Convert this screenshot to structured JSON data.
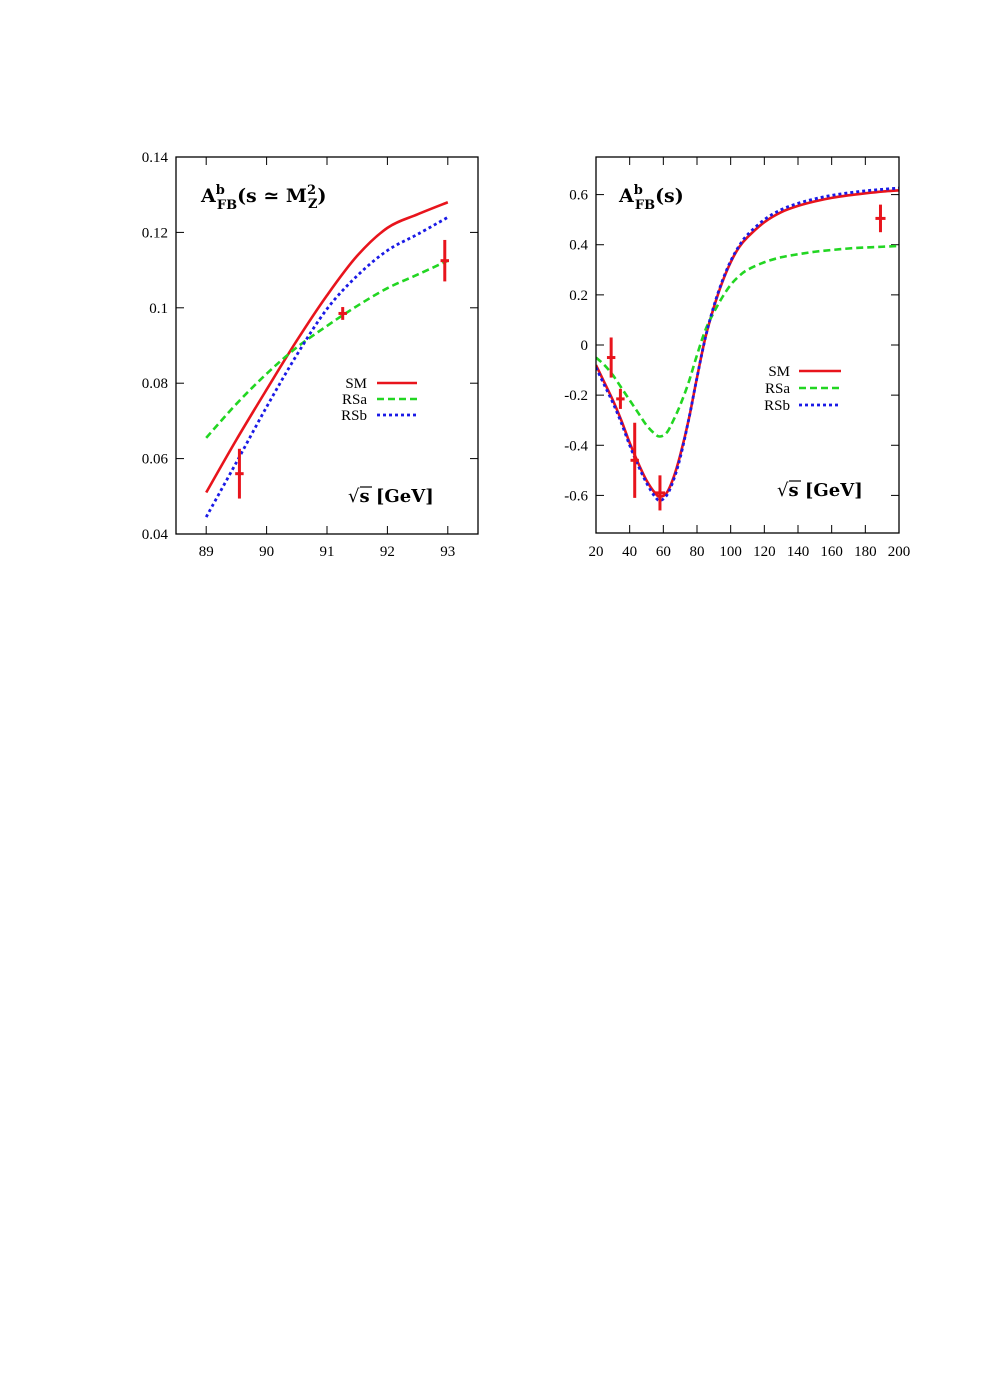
{
  "colors": {
    "SM": "#e8141c",
    "RSa": "#22d622",
    "RSb": "#1a1ae6",
    "data": "#e8141c"
  },
  "chart_data": [
    {
      "type": "line",
      "title": "A_FB^b(s ≃ M_Z^2)",
      "title_parts": {
        "main": "A",
        "sup": "b",
        "sub": "FB",
        "open": "(s ≃ M",
        "zsub": "Z",
        "zsup": "2",
        "close": ")"
      },
      "xlabel": "√s [GeV]",
      "xlabel_parts": {
        "root": "√",
        "text": "s [GeV]"
      },
      "xlim": [
        88.5,
        93.5
      ],
      "ylim": [
        0.04,
        0.14
      ],
      "xticks": [
        89,
        90,
        91,
        92,
        93
      ],
      "yticks": [
        0.04,
        0.06,
        0.08,
        0.1,
        0.12,
        0.14
      ],
      "xtick_labels": [
        "89",
        "90",
        "91",
        "92",
        "93"
      ],
      "ytick_labels": [
        "0.04",
        "0.06",
        "0.08",
        "0.1",
        "0.12",
        "0.14"
      ],
      "legend_position": "center-right",
      "series": [
        {
          "name": "SM",
          "style": "solid",
          "x": [
            89,
            89.5,
            90,
            90.5,
            91,
            91.5,
            92,
            92.5,
            93
          ],
          "y": [
            0.051,
            0.065,
            0.0783,
            0.0913,
            0.1033,
            0.1138,
            0.1212,
            0.1248,
            0.128
          ]
        },
        {
          "name": "RSa",
          "style": "dashed",
          "x": [
            89,
            89.5,
            90,
            90.5,
            91,
            91.5,
            92,
            92.5,
            93
          ],
          "y": [
            0.0655,
            0.0745,
            0.0825,
            0.0895,
            0.0952,
            0.1005,
            0.1052,
            0.1088,
            0.1125
          ]
        },
        {
          "name": "RSb",
          "style": "dotted",
          "x": [
            89,
            89.5,
            90,
            90.5,
            91,
            91.5,
            92,
            92.5,
            93
          ],
          "y": [
            0.0445,
            0.059,
            0.0737,
            0.0875,
            0.0997,
            0.1085,
            0.1152,
            0.1195,
            0.124
          ]
        }
      ],
      "data_points": [
        {
          "x": 89.55,
          "y": 0.056,
          "yerr": 0.0066,
          "xerr": 0.07
        },
        {
          "x": 91.26,
          "y": 0.0985,
          "yerr": 0.0017,
          "xerr": 0.07
        },
        {
          "x": 92.95,
          "y": 0.1125,
          "yerr": 0.0055,
          "xerr": 0.07
        }
      ]
    },
    {
      "type": "line",
      "title": "A_FB^b(s)",
      "title_parts": {
        "main": "A",
        "sup": "b",
        "sub": "FB",
        "open": "(s)"
      },
      "xlabel": "√s [GeV]",
      "xlabel_parts": {
        "root": "√",
        "text": "s [GeV]"
      },
      "xlim": [
        20,
        200
      ],
      "ylim": [
        -0.75,
        0.75
      ],
      "xticks": [
        20,
        40,
        60,
        80,
        100,
        120,
        140,
        160,
        180,
        200
      ],
      "yticks": [
        -0.6,
        -0.4,
        -0.2,
        0,
        0.2,
        0.4,
        0.6
      ],
      "xtick_labels": [
        "20",
        "40",
        "60",
        "80",
        "100",
        "120",
        "140",
        "160",
        "180",
        "200"
      ],
      "ytick_labels": [
        "-0.6",
        "-0.4",
        "-0.2",
        "0",
        "0.2",
        "0.4",
        "0.6"
      ],
      "legend_position": "center-left",
      "series": [
        {
          "name": "SM",
          "style": "solid",
          "x": [
            20,
            25,
            30,
            35,
            40,
            45,
            50,
            55,
            58,
            62,
            66,
            70,
            75,
            80,
            85,
            90,
            95,
            100,
            105,
            110,
            120,
            130,
            140,
            150,
            160,
            170,
            180,
            190,
            200
          ],
          "y": [
            -0.08,
            -0.15,
            -0.22,
            -0.3,
            -0.39,
            -0.47,
            -0.54,
            -0.59,
            -0.605,
            -0.59,
            -0.53,
            -0.44,
            -0.3,
            -0.13,
            0.03,
            0.15,
            0.25,
            0.33,
            0.39,
            0.43,
            0.49,
            0.53,
            0.555,
            0.573,
            0.587,
            0.597,
            0.605,
            0.612,
            0.617
          ]
        },
        {
          "name": "RSa",
          "style": "dashed",
          "x": [
            20,
            25,
            30,
            35,
            40,
            45,
            50,
            55,
            58,
            62,
            66,
            70,
            75,
            80,
            85,
            90,
            95,
            100,
            105,
            110,
            120,
            130,
            140,
            150,
            160,
            170,
            180,
            190,
            200
          ],
          "y": [
            -0.05,
            -0.08,
            -0.12,
            -0.17,
            -0.22,
            -0.27,
            -0.32,
            -0.355,
            -0.365,
            -0.35,
            -0.3,
            -0.24,
            -0.15,
            -0.04,
            0.06,
            0.13,
            0.19,
            0.24,
            0.275,
            0.3,
            0.33,
            0.35,
            0.362,
            0.372,
            0.379,
            0.385,
            0.389,
            0.392,
            0.395
          ]
        },
        {
          "name": "RSb",
          "style": "dotted",
          "x": [
            20,
            25,
            30,
            35,
            40,
            45,
            50,
            55,
            58,
            62,
            66,
            70,
            75,
            80,
            85,
            90,
            95,
            100,
            105,
            110,
            120,
            130,
            140,
            150,
            160,
            170,
            180,
            190,
            200
          ],
          "y": [
            -0.09,
            -0.16,
            -0.23,
            -0.31,
            -0.4,
            -0.48,
            -0.55,
            -0.605,
            -0.62,
            -0.6,
            -0.54,
            -0.45,
            -0.3,
            -0.13,
            0.03,
            0.155,
            0.255,
            0.335,
            0.395,
            0.44,
            0.5,
            0.54,
            0.565,
            0.583,
            0.597,
            0.607,
            0.615,
            0.621,
            0.626
          ]
        }
      ],
      "data_points": [
        {
          "x": 29,
          "y": -0.05,
          "yerr": 0.08,
          "xerr": 2.5
        },
        {
          "x": 34.5,
          "y": -0.215,
          "yerr": 0.04,
          "xerr": 2.5
        },
        {
          "x": 43,
          "y": -0.46,
          "yerr": 0.15,
          "xerr": 2.5
        },
        {
          "x": 58,
          "y": -0.59,
          "yerr": 0.07,
          "xerr": 3
        },
        {
          "x": 189,
          "y": 0.505,
          "yerr": 0.055,
          "xerr": 3
        }
      ]
    }
  ]
}
